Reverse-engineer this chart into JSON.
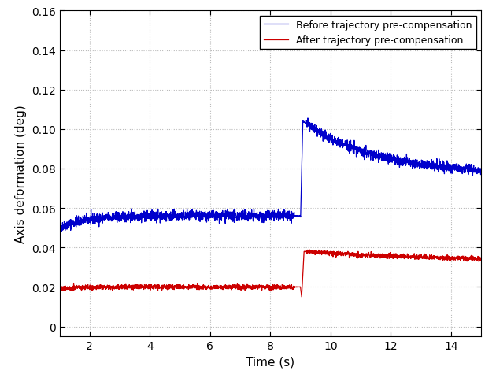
{
  "title": "",
  "xlabel": "Time (s)",
  "ylabel": "Axis deformation (deg)",
  "xlim": [
    1,
    15
  ],
  "ylim": [
    -0.005,
    0.16
  ],
  "xticks": [
    2,
    4,
    6,
    8,
    10,
    12,
    14
  ],
  "yticks": [
    0,
    0.02,
    0.04,
    0.06,
    0.08,
    0.1,
    0.12,
    0.14,
    0.16
  ],
  "legend": [
    "Before trajectory pre-compensation",
    "After trajectory pre-compensation"
  ],
  "blue_color": "#0000cc",
  "red_color": "#cc0000",
  "background_color": "#ffffff",
  "grid_color": "#bbbbbb",
  "noise_amplitude_blue": 0.0013,
  "noise_amplitude_red": 0.0006,
  "figsize": [
    6.3,
    4.81
  ],
  "dpi": 100
}
